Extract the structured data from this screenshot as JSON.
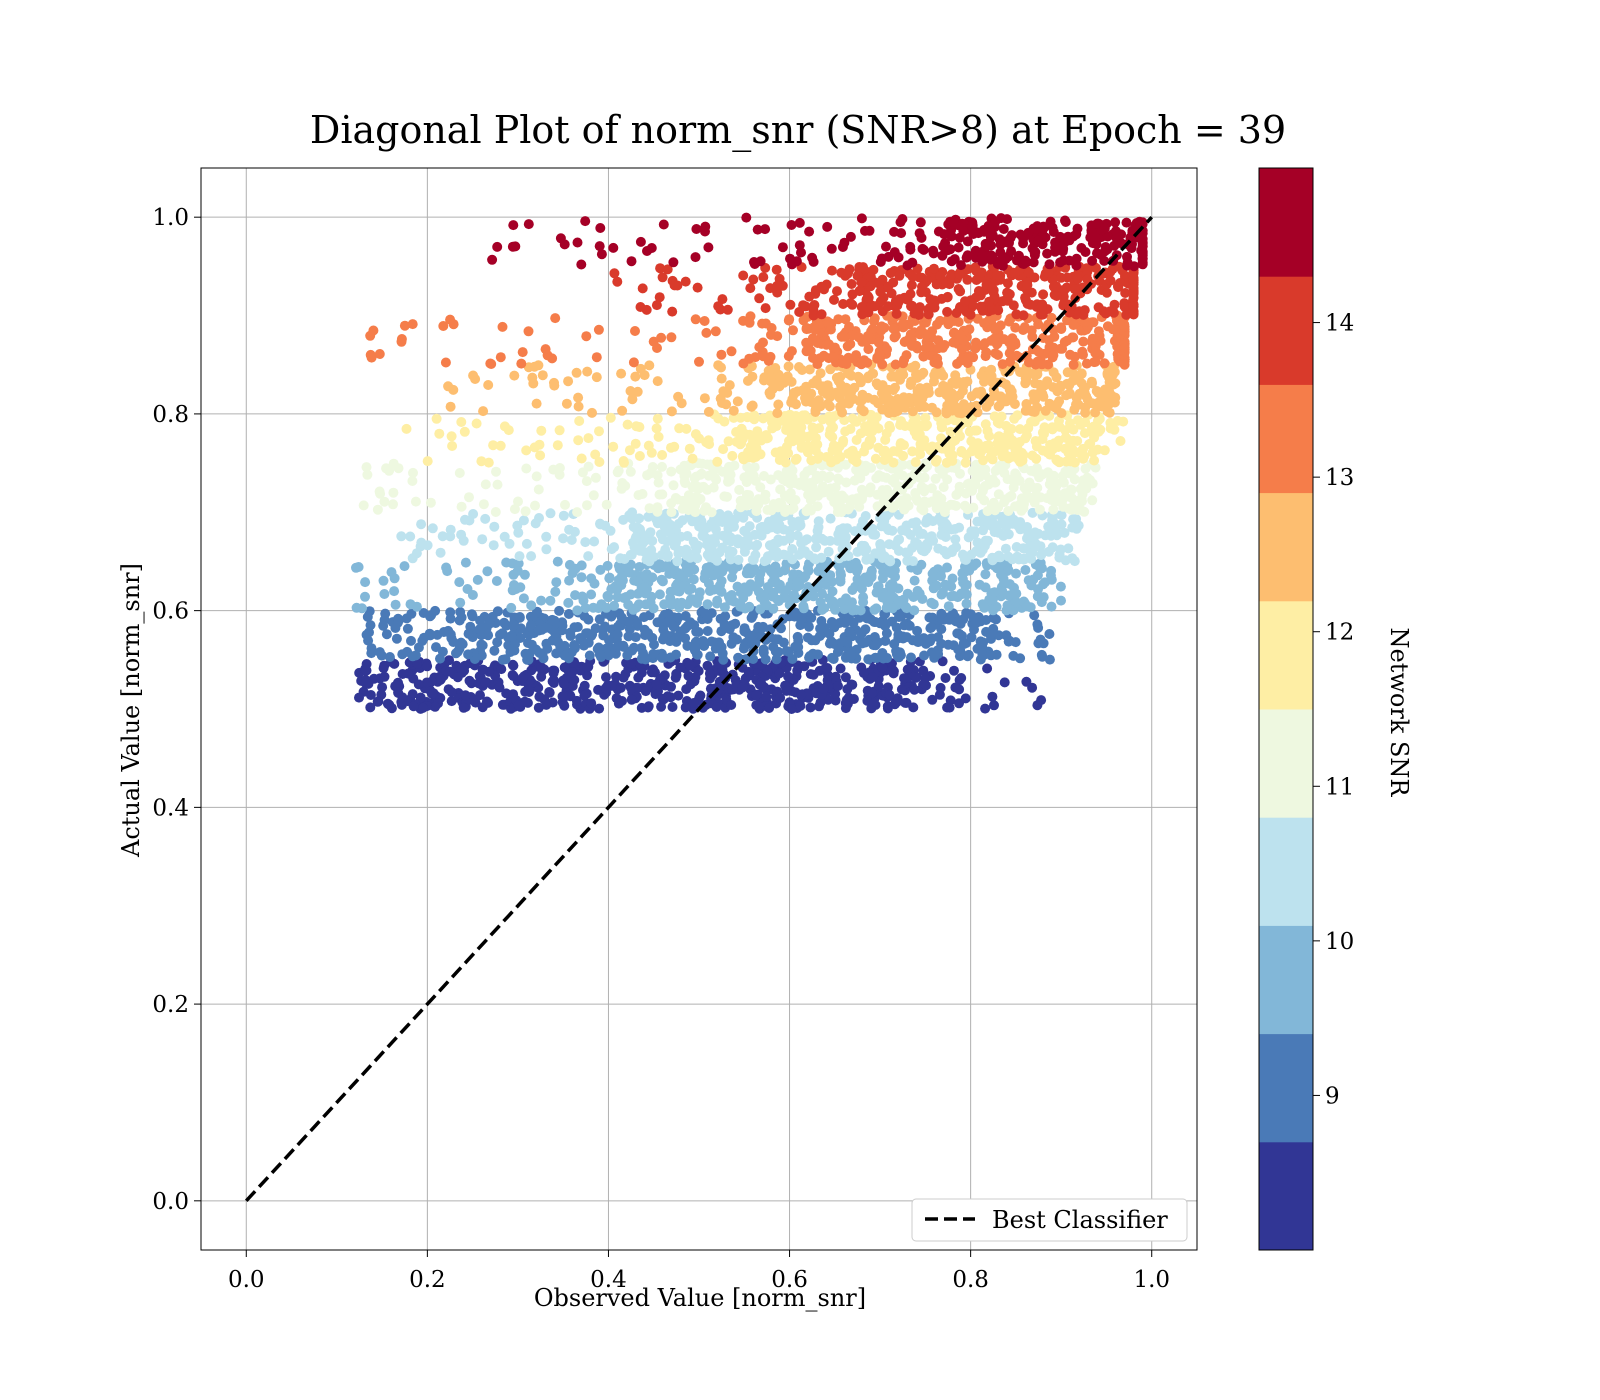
{
  "chart_data": {
    "type": "scatter",
    "title": "Diagonal Plot of norm_snr (SNR>8) at Epoch = 39",
    "xlabel": "Observed Value [norm_snr]",
    "ylabel": "Actual Value [norm_snr]",
    "xlim": [
      -0.05,
      1.05
    ],
    "ylim": [
      -0.05,
      1.05
    ],
    "xticks": [
      0.0,
      0.2,
      0.4,
      0.6,
      0.8,
      1.0
    ],
    "yticks": [
      0.0,
      0.2,
      0.4,
      0.6,
      0.8,
      1.0
    ],
    "grid": true,
    "reference_line": {
      "name": "Best Classifier",
      "x": [
        0.0,
        1.0
      ],
      "y": [
        0.0,
        1.0
      ],
      "style": "dashed",
      "color": "#000000"
    },
    "legend": {
      "placement": "lower-right",
      "entries": [
        "Best Classifier"
      ]
    },
    "colorbar": {
      "label": "Network SNR",
      "range": [
        8.0,
        15.0
      ],
      "ticks": [
        9,
        10,
        11,
        12,
        13,
        14
      ],
      "colormap": "RdYlBu_r",
      "band_colors": [
        "#313695",
        "#4a7ab7",
        "#82b7d8",
        "#bde2ee",
        "#eef8e0",
        "#feeea4",
        "#fdbe70",
        "#f57d4a",
        "#d93a2b",
        "#a50026"
      ]
    },
    "bands": [
      {
        "snr": 8.35,
        "y": [
          0.5,
          0.55
        ],
        "x_core": [
          0.2,
          0.75
        ],
        "x_range": [
          0.12,
          0.89
        ]
      },
      {
        "snr": 9.05,
        "y": [
          0.55,
          0.6
        ],
        "x_core": [
          0.25,
          0.82
        ],
        "x_range": [
          0.13,
          0.89
        ]
      },
      {
        "snr": 9.75,
        "y": [
          0.6,
          0.65
        ],
        "x_core": [
          0.4,
          0.86
        ],
        "x_range": [
          0.12,
          0.9
        ]
      },
      {
        "snr": 10.45,
        "y": [
          0.65,
          0.7
        ],
        "x_core": [
          0.43,
          0.89
        ],
        "x_range": [
          0.15,
          0.94
        ]
      },
      {
        "snr": 11.15,
        "y": [
          0.7,
          0.75
        ],
        "x_core": [
          0.48,
          0.92
        ],
        "x_range": [
          0.12,
          0.94
        ]
      },
      {
        "snr": 11.85,
        "y": [
          0.75,
          0.8
        ],
        "x_core": [
          0.55,
          0.94
        ],
        "x_range": [
          0.17,
          0.97
        ]
      },
      {
        "snr": 12.55,
        "y": [
          0.8,
          0.85
        ],
        "x_core": [
          0.58,
          0.95
        ],
        "x_range": [
          0.22,
          0.96
        ]
      },
      {
        "snr": 13.25,
        "y": [
          0.85,
          0.9
        ],
        "x_core": [
          0.62,
          0.97
        ],
        "x_range": [
          0.13,
          0.97
        ]
      },
      {
        "snr": 13.95,
        "y": [
          0.9,
          0.95
        ],
        "x_core": [
          0.68,
          0.98
        ],
        "x_range": [
          0.4,
          0.98
        ]
      },
      {
        "snr": 14.65,
        "y": [
          0.95,
          1.0
        ],
        "x_core": [
          0.77,
          0.99
        ],
        "x_range": [
          0.26,
          0.99
        ]
      }
    ]
  }
}
